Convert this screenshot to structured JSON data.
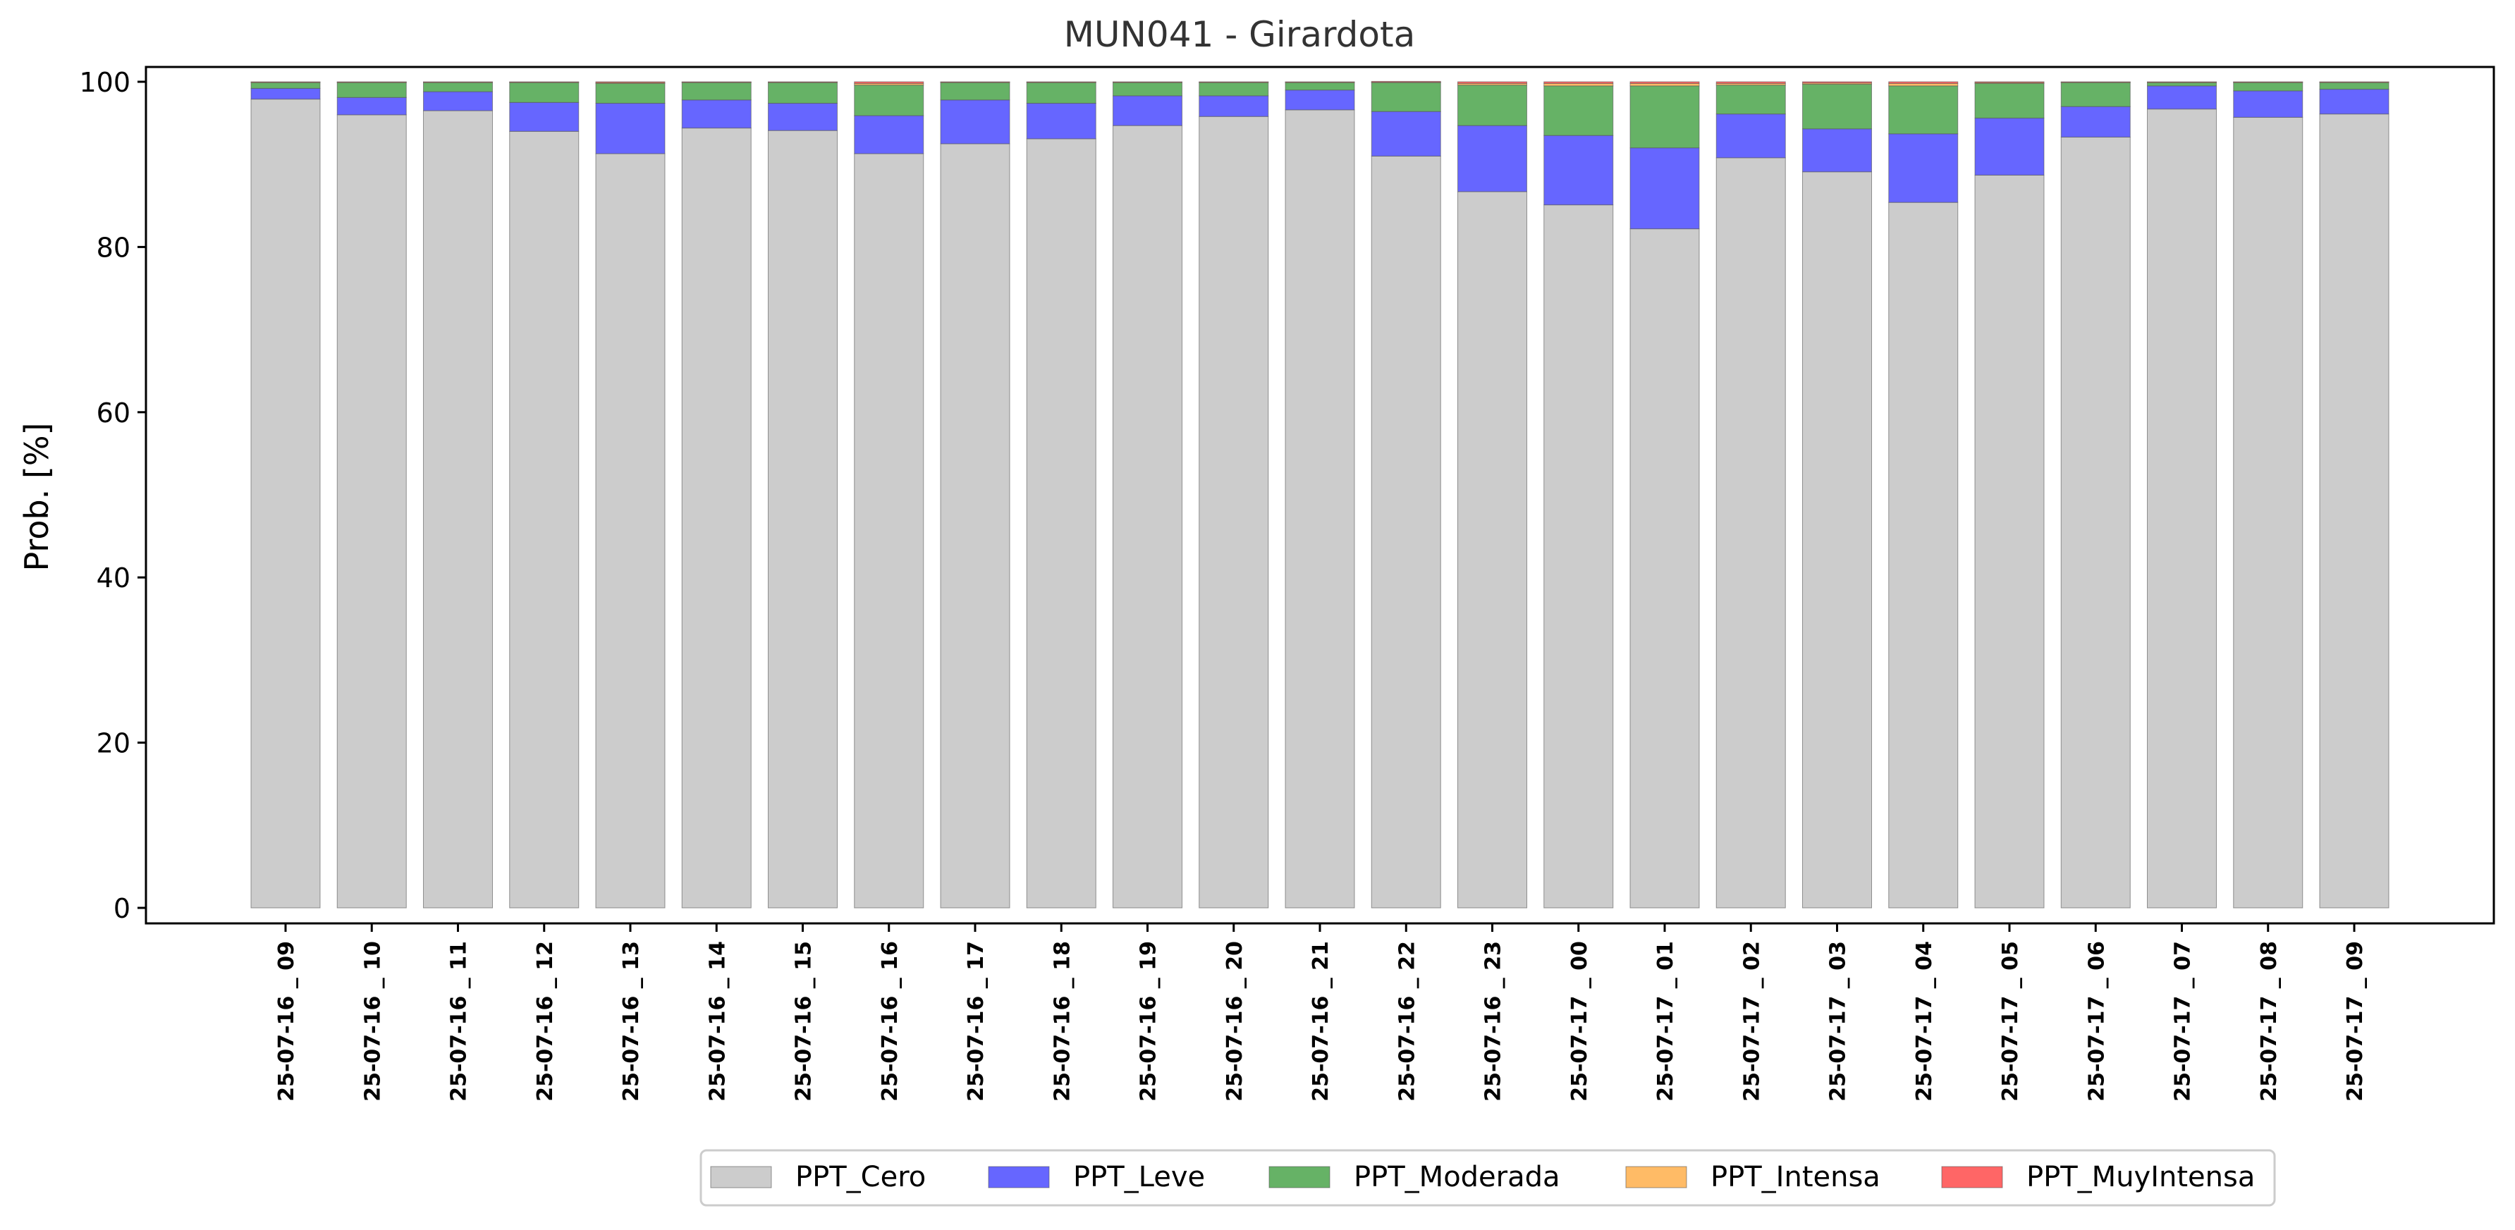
{
  "chart_data": {
    "type": "bar",
    "stacked": true,
    "title": "MUN041 - Girardota",
    "xlabel": "",
    "ylabel": "Prob. [%]",
    "ylim": [
      0,
      100
    ],
    "yticks": [
      0,
      20,
      40,
      60,
      80,
      100
    ],
    "grid": false,
    "legend_position": "bottom-center",
    "categories": [
      "25-07-16 _ 09",
      "25-07-16 _ 10",
      "25-07-16 _ 11",
      "25-07-16 _ 12",
      "25-07-16 _ 13",
      "25-07-16 _ 14",
      "25-07-16 _ 15",
      "25-07-16 _ 16",
      "25-07-16 _ 17",
      "25-07-16 _ 18",
      "25-07-16 _ 19",
      "25-07-16 _ 20",
      "25-07-16 _ 21",
      "25-07-16 _ 22",
      "25-07-16 _ 23",
      "25-07-17 _ 00",
      "25-07-17 _ 01",
      "25-07-17 _ 02",
      "25-07-17 _ 03",
      "25-07-17 _ 04",
      "25-07-17 _ 05",
      "25-07-17 _ 06",
      "25-07-17 _ 07",
      "25-07-17 _ 08",
      "25-07-17 _ 09"
    ],
    "series": [
      {
        "name": "PPT_Cero",
        "color": "#cccccc",
        "values": [
          97.9,
          96.0,
          96.5,
          94.0,
          91.3,
          94.4,
          94.1,
          91.3,
          92.5,
          93.1,
          94.7,
          95.8,
          96.6,
          91.0,
          86.7,
          85.1,
          82.2,
          90.8,
          89.1,
          85.4,
          88.7,
          93.3,
          96.7,
          95.7,
          96.1
        ]
      },
      {
        "name": "PPT_Leve",
        "color": "#6666ff",
        "values": [
          1.3,
          2.1,
          2.3,
          3.5,
          6.1,
          3.4,
          3.3,
          4.6,
          5.3,
          4.3,
          3.6,
          2.5,
          2.4,
          5.4,
          8.0,
          8.4,
          9.8,
          5.3,
          5.2,
          8.3,
          6.9,
          3.7,
          2.8,
          3.2,
          3.0
        ]
      },
      {
        "name": "PPT_Moderada",
        "color": "#66b266",
        "values": [
          0.7,
          1.8,
          1.1,
          2.4,
          2.4,
          2.1,
          2.5,
          3.7,
          2.1,
          2.5,
          1.6,
          1.6,
          0.9,
          3.5,
          4.9,
          6.0,
          7.5,
          3.5,
          5.4,
          5.8,
          4.2,
          2.9,
          0.4,
          1.0,
          0.8
        ]
      },
      {
        "name": "PPT_Intensa",
        "color": "#ffbb66",
        "values": [
          0.05,
          0.05,
          0.05,
          0.05,
          0.1,
          0.05,
          0.05,
          0.2,
          0.05,
          0.05,
          0.05,
          0.05,
          0.05,
          0.05,
          0.2,
          0.3,
          0.3,
          0.2,
          0.15,
          0.3,
          0.1,
          0.05,
          0.05,
          0.05,
          0.05
        ]
      },
      {
        "name": "PPT_MuyIntensa",
        "color": "#ff6666",
        "values": [
          0.05,
          0.05,
          0.05,
          0.05,
          0.1,
          0.05,
          0.05,
          0.2,
          0.05,
          0.05,
          0.05,
          0.05,
          0.05,
          0.1,
          0.2,
          0.2,
          0.2,
          0.2,
          0.15,
          0.2,
          0.1,
          0.05,
          0.05,
          0.05,
          0.05
        ]
      }
    ]
  }
}
